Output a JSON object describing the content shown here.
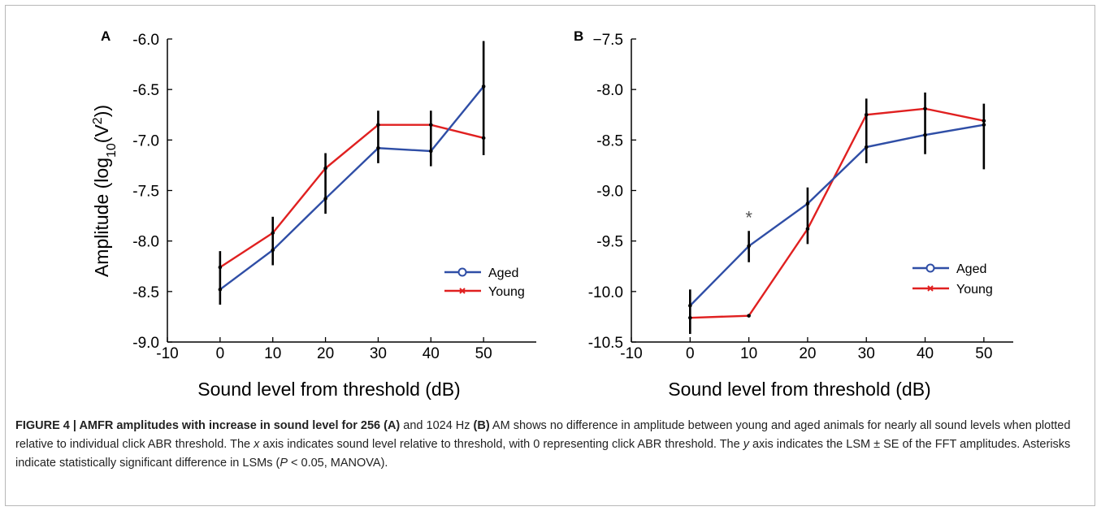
{
  "chart_data": [
    {
      "panel": "A",
      "type": "line",
      "xlabel": "Sound level from threshold (dB)",
      "ylabel": "Amplitude (log10(V2))",
      "xlim": [
        -10,
        60
      ],
      "ylim": [
        -9.0,
        -6.0
      ],
      "xticks": [
        -10,
        0,
        10,
        20,
        30,
        40,
        50
      ],
      "yticks": [
        "-6.0",
        "-6.5",
        "-7.0",
        "-7.5",
        "-8.0",
        "-8.5",
        "-9.0"
      ],
      "legend_position": "lower-right",
      "x": [
        0,
        10,
        20,
        30,
        40,
        50
      ],
      "series": [
        {
          "name": "Aged",
          "color": "#2f4ea6",
          "marker": "circle",
          "values": [
            -8.48,
            -8.09,
            -7.58,
            -7.08,
            -7.11,
            -6.47
          ],
          "err_low": [
            -8.63,
            -8.24,
            -7.73,
            -7.23,
            -7.26,
            -7.15
          ],
          "err_high": [
            -8.1,
            -7.76,
            -7.13,
            -6.71,
            -6.71,
            -6.02
          ]
        },
        {
          "name": "Young",
          "color": "#e02020",
          "marker": "x",
          "values": [
            -8.26,
            -7.92,
            -7.28,
            -6.85,
            -6.85,
            -6.98
          ]
        }
      ]
    },
    {
      "panel": "B",
      "type": "line",
      "xlabel": "Sound level from threshold (dB)",
      "ylabel": "",
      "xlim": [
        -10,
        55
      ],
      "ylim": [
        -10.5,
        -7.5
      ],
      "xticks": [
        -10,
        0,
        10,
        20,
        30,
        40,
        50
      ],
      "yticks": [
        "−7.5",
        "-8.0",
        "-8.5",
        "-9.0",
        "-9.5",
        "-10.0",
        "-10.5"
      ],
      "legend_position": "lower-right",
      "annotations": [
        {
          "text": "*",
          "x": 10,
          "y": -9.33
        }
      ],
      "x": [
        0,
        10,
        20,
        30,
        40,
        50
      ],
      "series": [
        {
          "name": "Aged",
          "color": "#2f4ea6",
          "marker": "circle",
          "values": [
            -10.14,
            -9.55,
            -9.13,
            -8.57,
            -8.45,
            -8.35
          ],
          "err_low": [
            -10.42,
            -9.71,
            -9.53,
            -8.73,
            -8.64,
            -8.79
          ],
          "err_high": [
            -9.98,
            -9.4,
            -8.97,
            -8.09,
            -8.03,
            -8.14
          ]
        },
        {
          "name": "Young",
          "color": "#e02020",
          "marker": "x",
          "values": [
            -10.26,
            -10.24,
            -9.38,
            -8.25,
            -8.19,
            -8.31
          ]
        }
      ]
    }
  ],
  "caption": {
    "figure_label": "FIGURE 4 | AMFR amplitudes with increase in sound level for 256 (A)",
    "part1": " and 1024 Hz ",
    "bold_b": "(B)",
    "part2": " AM shows no difference in amplitude between young and aged animals for nearly all sound levels when plotted relative to individual click ABR threshold. The ",
    "x_italic": "x",
    "part3": " axis indicates sound level relative to threshold, with 0 representing click ABR threshold. The ",
    "y_italic": "y",
    "part4": " axis indicates the LSM ± SE of the FFT amplitudes. Asterisks indicate statistically significant difference in LSMs (",
    "p_italic": "P",
    "part5": " < 0.05, MANOVA)."
  }
}
